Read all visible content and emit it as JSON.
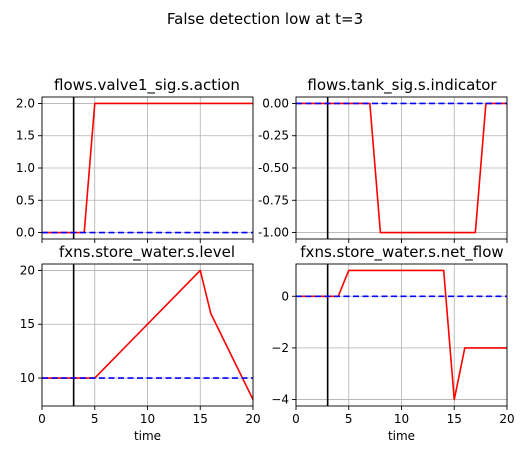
{
  "figure": {
    "suptitle": "False detection low at t=3",
    "colors": {
      "faulty": "#ff0000",
      "nominal": "#0000ff",
      "marker": "#000000",
      "grid": "#b0b0b0"
    }
  },
  "chart_data": [
    {
      "type": "line",
      "title": "flows.valve1_sig.s.action",
      "xlabel": "",
      "xlim": [
        0,
        20
      ],
      "ylim": [
        -0.1,
        2.1
      ],
      "xticks": [
        0,
        5,
        10,
        15,
        20
      ],
      "yticks": [
        0.0,
        0.5,
        1.0,
        1.5,
        2.0
      ],
      "ytick_labels": [
        "0.0",
        "0.5",
        "1.0",
        "1.5",
        "2.0"
      ],
      "show_xtick_labels": false,
      "grid": true,
      "marker_time": 3,
      "series": [
        {
          "style": "solid",
          "color": "#ff0000",
          "x": [
            0,
            4,
            5,
            20
          ],
          "y": [
            0,
            0,
            2,
            2
          ]
        },
        {
          "style": "dashed",
          "color": "#0000ff",
          "x": [
            0,
            20
          ],
          "y": [
            0,
            0
          ]
        }
      ]
    },
    {
      "type": "line",
      "title": "flows.tank_sig.s.indicator",
      "xlabel": "",
      "xlim": [
        0,
        20
      ],
      "ylim": [
        -1.05,
        0.05
      ],
      "xticks": [
        0,
        5,
        10,
        15,
        20
      ],
      "yticks": [
        0.0,
        -0.25,
        -0.5,
        -0.75,
        -1.0
      ],
      "ytick_labels": [
        "0.00",
        "-0.25",
        "-0.50",
        "-0.75",
        "-1.00"
      ],
      "show_xtick_labels": false,
      "grid": true,
      "marker_time": 3,
      "series": [
        {
          "style": "solid",
          "color": "#ff0000",
          "x": [
            0,
            7,
            8,
            17,
            18,
            20
          ],
          "y": [
            0,
            0,
            -1,
            -1,
            0,
            0
          ]
        },
        {
          "style": "dashed",
          "color": "#0000ff",
          "x": [
            0,
            20
          ],
          "y": [
            0,
            0
          ]
        }
      ]
    },
    {
      "type": "line",
      "title": "fxns.store_water.s.level",
      "xlabel": "time",
      "xlim": [
        0,
        20
      ],
      "ylim": [
        7.4,
        20.6
      ],
      "xticks": [
        0,
        5,
        10,
        15,
        20
      ],
      "yticks": [
        10,
        15,
        20
      ],
      "ytick_labels": [
        "10",
        "15",
        "20"
      ],
      "show_xtick_labels": true,
      "grid": true,
      "marker_time": 3,
      "series": [
        {
          "style": "solid",
          "color": "#ff0000",
          "x": [
            0,
            5,
            15,
            16,
            20
          ],
          "y": [
            10,
            10,
            20,
            16,
            8
          ]
        },
        {
          "style": "dashed",
          "color": "#0000ff",
          "x": [
            0,
            20
          ],
          "y": [
            10,
            10
          ]
        }
      ]
    },
    {
      "type": "line",
      "title": "fxns.store_water.s.net_flow",
      "xlabel": "time",
      "xlim": [
        0,
        20
      ],
      "ylim": [
        -4.25,
        1.25
      ],
      "xticks": [
        0,
        5,
        10,
        15,
        20
      ],
      "yticks": [
        0,
        -2,
        -4
      ],
      "ytick_labels": [
        "0",
        "−2",
        "−4"
      ],
      "show_xtick_labels": true,
      "grid": true,
      "marker_time": 3,
      "series": [
        {
          "style": "solid",
          "color": "#ff0000",
          "x": [
            0,
            4,
            5,
            14,
            15,
            16,
            20
          ],
          "y": [
            0,
            0,
            1,
            1,
            -4,
            -2,
            -2
          ]
        },
        {
          "style": "dashed",
          "color": "#0000ff",
          "x": [
            0,
            20
          ],
          "y": [
            0,
            0
          ]
        }
      ]
    }
  ]
}
